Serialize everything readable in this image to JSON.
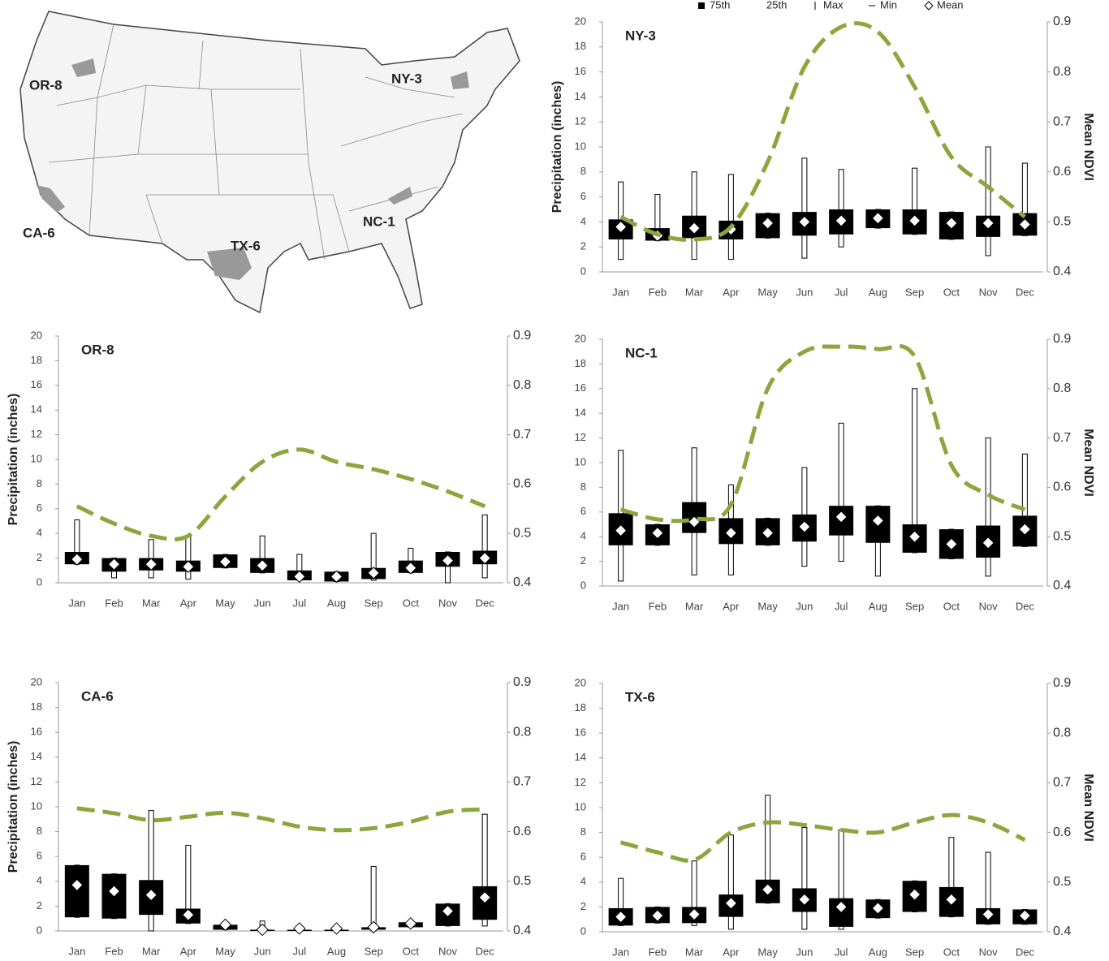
{
  "legend": [
    "75th",
    "25th",
    "Max",
    "Min",
    "Mean"
  ],
  "map": {
    "labels": [
      "OR-8",
      "NY-3",
      "CA-6",
      "TX-6",
      "NC-1"
    ]
  },
  "chart_data": [
    {
      "type": "box",
      "title": "NY-3",
      "y_label": "Precipitation (inches)",
      "y2_label": "Mean NDVI",
      "categories": [
        "Jan",
        "Feb",
        "Mar",
        "Apr",
        "May",
        "Jun",
        "Jul",
        "Aug",
        "Sep",
        "Oct",
        "Nov",
        "Dec"
      ],
      "q75": [
        4.2,
        3.5,
        4.5,
        4.1,
        4.7,
        4.8,
        5.0,
        5.0,
        5.0,
        4.8,
        4.5,
        4.7
      ],
      "q25": [
        2.6,
        2.5,
        2.7,
        2.6,
        2.7,
        2.9,
        3.0,
        3.5,
        3.0,
        2.6,
        2.8,
        2.9
      ],
      "max": [
        7.2,
        6.2,
        8.0,
        7.8,
        4.7,
        9.1,
        8.2,
        5.0,
        8.3,
        4.8,
        10.0,
        8.7
      ],
      "min": [
        1.0,
        2.5,
        1.0,
        1.0,
        2.7,
        1.1,
        2.0,
        3.5,
        3.0,
        2.6,
        1.3,
        2.9
      ],
      "mean": [
        3.6,
        2.9,
        3.5,
        3.4,
        3.9,
        4.0,
        4.1,
        4.3,
        4.1,
        3.9,
        3.9,
        3.8
      ],
      "ndvi": {
        "axis": "y2",
        "color": "#8aa63c",
        "values": [
          0.51,
          0.475,
          0.465,
          0.49,
          0.62,
          0.81,
          0.89,
          0.88,
          0.77,
          0.63,
          0.57,
          0.51
        ]
      },
      "ylim": [
        0,
        20
      ],
      "yticks": [
        0,
        2,
        4,
        6,
        8,
        10,
        12,
        14,
        16,
        18,
        20
      ],
      "y2lim": [
        0.4,
        0.9
      ],
      "y2ticks": [
        0.4,
        0.5,
        0.6,
        0.7,
        0.8,
        0.9
      ]
    },
    {
      "type": "box",
      "title": "OR-8",
      "y_label": "Precipitation (inches)",
      "categories": [
        "Jan",
        "Feb",
        "Mar",
        "Apr",
        "May",
        "Jun",
        "Jul",
        "Aug",
        "Sep",
        "Oct",
        "Nov",
        "Dec"
      ],
      "q75": [
        2.5,
        2.0,
        2.0,
        1.8,
        2.3,
        2.0,
        1.0,
        0.9,
        1.2,
        1.8,
        2.5,
        2.6
      ],
      "q25": [
        1.5,
        0.9,
        1.0,
        0.9,
        1.2,
        0.8,
        0.2,
        0.1,
        0.3,
        0.8,
        1.3,
        1.5
      ],
      "max": [
        5.1,
        2.0,
        3.5,
        3.8,
        2.3,
        3.8,
        2.3,
        0.9,
        4.0,
        2.8,
        2.5,
        5.5
      ],
      "min": [
        1.5,
        0.4,
        0.4,
        0.3,
        1.2,
        0.8,
        0.2,
        0.1,
        0.2,
        0.8,
        0,
        0.4
      ],
      "mean": [
        1.9,
        1.5,
        1.5,
        1.3,
        1.7,
        1.4,
        0.5,
        0.5,
        0.8,
        1.2,
        1.8,
        2.0
      ],
      "ndvi": {
        "axis": "y2",
        "color": "#8aa63c",
        "values": [
          0.555,
          0.52,
          0.495,
          0.495,
          0.575,
          0.645,
          0.67,
          0.645,
          0.63,
          0.61,
          0.585,
          0.555
        ]
      },
      "ylim": [
        0,
        20
      ],
      "yticks": [
        0,
        2,
        4,
        6,
        8,
        10,
        12,
        14,
        16,
        18,
        20
      ],
      "y2lim": [
        0.4,
        0.9
      ],
      "y2ticks": [
        0.4,
        0.5,
        0.6,
        0.7,
        0.8,
        0.9
      ]
    },
    {
      "type": "box",
      "title": "NC-1",
      "y2_label": "Mean NDVI",
      "categories": [
        "Jan",
        "Feb",
        "Mar",
        "Apr",
        "May",
        "Jun",
        "Jul",
        "Aug",
        "Sep",
        "Oct",
        "Nov",
        "Dec"
      ],
      "q75": [
        5.9,
        5.0,
        6.8,
        5.5,
        5.5,
        5.8,
        6.5,
        6.5,
        5.0,
        4.6,
        4.9,
        5.7
      ],
      "q25": [
        3.3,
        3.3,
        4.3,
        3.4,
        3.3,
        3.6,
        4.1,
        3.5,
        2.7,
        2.2,
        2.3,
        3.2
      ],
      "max": [
        11.0,
        5.0,
        11.2,
        8.2,
        5.5,
        9.6,
        13.2,
        6.5,
        16.0,
        4.6,
        12.0,
        10.7
      ],
      "min": [
        0.4,
        3.3,
        0.9,
        0.9,
        3.3,
        1.6,
        2.0,
        0.8,
        2.7,
        2.2,
        0.8,
        3.2
      ],
      "mean": [
        4.5,
        4.3,
        5.2,
        4.3,
        4.3,
        4.8,
        5.6,
        5.3,
        4.0,
        3.4,
        3.5,
        4.6
      ],
      "ndvi": {
        "axis": "y2",
        "color": "#8aa63c",
        "values": [
          0.555,
          0.535,
          0.535,
          0.565,
          0.8,
          0.875,
          0.885,
          0.88,
          0.865,
          0.645,
          0.585,
          0.555
        ]
      },
      "ylim": [
        0,
        20
      ],
      "yticks": [
        0,
        2,
        4,
        6,
        8,
        10,
        12,
        14,
        16,
        18,
        20
      ],
      "y2lim": [
        0.4,
        0.9
      ],
      "y2ticks": [
        0.4,
        0.5,
        0.6,
        0.7,
        0.8,
        0.9
      ]
    },
    {
      "type": "box",
      "title": "CA-6",
      "y_label": "Precipitation (inches)",
      "categories": [
        "Jan",
        "Feb",
        "Mar",
        "Apr",
        "May",
        "Jun",
        "Jul",
        "Aug",
        "Sep",
        "Oct",
        "Nov",
        "Dec"
      ],
      "q75": [
        5.3,
        4.6,
        4.1,
        1.8,
        0.5,
        0.1,
        0.1,
        0.1,
        0.3,
        0.7,
        2.2,
        3.6
      ],
      "q25": [
        1.1,
        1.0,
        1.3,
        0.6,
        0.1,
        0,
        0,
        0,
        0.1,
        0.3,
        0.4,
        0.9
      ],
      "max": [
        5.3,
        4.6,
        9.7,
        6.9,
        0.5,
        0.8,
        0.1,
        0.1,
        5.2,
        0.7,
        2.2,
        9.4
      ],
      "min": [
        1.1,
        1.0,
        0,
        0.6,
        0.1,
        0,
        0,
        0,
        0,
        0.3,
        0.4,
        0.4
      ],
      "mean": [
        3.7,
        3.2,
        2.9,
        1.3,
        0.5,
        0.1,
        0.2,
        0.2,
        0.3,
        0.6,
        1.6,
        2.7
      ],
      "ndvi": {
        "axis": "y2",
        "color": "#8aa63c",
        "values": [
          0.647,
          0.637,
          0.623,
          0.63,
          0.638,
          0.627,
          0.61,
          0.603,
          0.607,
          0.62,
          0.64,
          0.645
        ]
      },
      "ylim": [
        0,
        20
      ],
      "yticks": [
        0,
        2,
        4,
        6,
        8,
        10,
        12,
        14,
        16,
        18,
        20
      ],
      "y2lim": [
        0.4,
        0.9
      ],
      "y2ticks": [
        0.4,
        0.5,
        0.6,
        0.7,
        0.8,
        0.9
      ]
    },
    {
      "type": "box",
      "title": "TX-6",
      "y2_label": "Mean NDVI",
      "categories": [
        "Jan",
        "Feb",
        "Mar",
        "Apr",
        "May",
        "Jun",
        "Jul",
        "Aug",
        "Sep",
        "Oct",
        "Nov",
        "Dec"
      ],
      "q75": [
        1.9,
        2.0,
        2.0,
        3.0,
        4.2,
        3.5,
        2.7,
        2.6,
        4.1,
        3.6,
        1.9,
        1.8
      ],
      "q25": [
        0.5,
        0.7,
        0.7,
        1.2,
        2.3,
        1.6,
        0.4,
        1.1,
        1.6,
        1.2,
        0.6,
        0.6
      ],
      "max": [
        4.3,
        2.0,
        5.7,
        7.8,
        11.0,
        8.4,
        8.2,
        2.6,
        4.1,
        7.6,
        6.4,
        1.8
      ],
      "min": [
        0.5,
        0.7,
        0.5,
        0.2,
        2.3,
        0.2,
        0.2,
        1.1,
        1.6,
        1.2,
        0.6,
        0.6
      ],
      "mean": [
        1.2,
        1.3,
        1.4,
        2.3,
        3.4,
        2.6,
        2.0,
        1.9,
        3.0,
        2.6,
        1.4,
        1.3
      ],
      "ndvi": {
        "axis": "y2",
        "color": "#8aa63c",
        "values": [
          0.58,
          0.56,
          0.545,
          0.6,
          0.62,
          0.615,
          0.605,
          0.6,
          0.62,
          0.635,
          0.62,
          0.585
        ]
      },
      "ylim": [
        0,
        20
      ],
      "yticks": [
        0,
        2,
        4,
        6,
        8,
        10,
        12,
        14,
        16,
        18,
        20
      ],
      "y2lim": [
        0.4,
        0.9
      ],
      "y2ticks": [
        0.4,
        0.5,
        0.6,
        0.7,
        0.8,
        0.9
      ]
    }
  ]
}
